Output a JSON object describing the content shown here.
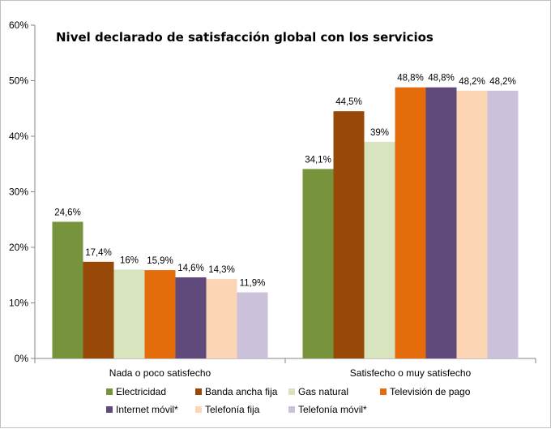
{
  "chart_data": {
    "type": "bar",
    "title": "Nivel declarado de satisfacción global con los servicios",
    "xlabel": "",
    "ylabel": "",
    "ylim": [
      0,
      60
    ],
    "y_ticks": [
      "0%",
      "10%",
      "20%",
      "30%",
      "40%",
      "50%",
      "60%"
    ],
    "y_tick_values": [
      0,
      10,
      20,
      30,
      40,
      50,
      60
    ],
    "grid": false,
    "legend_position": "bottom",
    "categories": [
      "Nada o poco satisfecho",
      "Satisfecho o muy satisfecho"
    ],
    "series": [
      {
        "name": "Electricidad",
        "color": "#77933c",
        "values": [
          24.6,
          34.1
        ],
        "labels": [
          "24,6%",
          "34,1%"
        ]
      },
      {
        "name": "Banda ancha fija",
        "color": "#984807",
        "values": [
          17.4,
          44.5
        ],
        "labels": [
          "17,4%",
          "44,5%"
        ]
      },
      {
        "name": "Gas natural",
        "color": "#d7e4bd",
        "values": [
          16,
          39
        ],
        "labels": [
          "16%",
          "39%"
        ]
      },
      {
        "name": "Televisión de pago",
        "color": "#e46c0a",
        "values": [
          15.9,
          48.8
        ],
        "labels": [
          "15,9%",
          "48,8%"
        ]
      },
      {
        "name": "Internet móvil*",
        "color": "#604a7b",
        "values": [
          14.6,
          48.8
        ],
        "labels": [
          "14,6%",
          "48,8%"
        ]
      },
      {
        "name": "Telefonía fija",
        "color": "#fcd5b5",
        "values": [
          14.3,
          48.2
        ],
        "labels": [
          "14,3%",
          "48,2%"
        ]
      },
      {
        "name": "Telefonía móvil*",
        "color": "#ccc1da",
        "values": [
          11.9,
          48.2
        ],
        "labels": [
          "11,9%",
          "48,2%"
        ]
      }
    ]
  }
}
